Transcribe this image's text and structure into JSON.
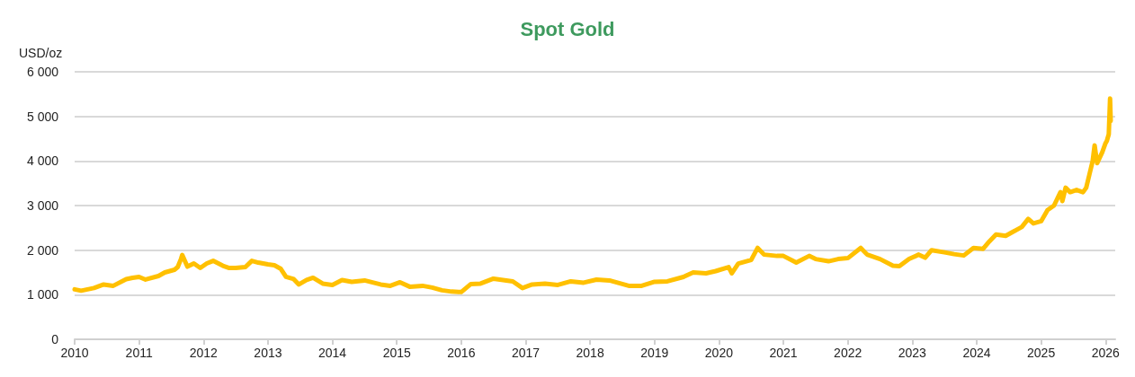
{
  "chart_data": {
    "type": "line",
    "title": "Spot Gold",
    "ylabel": "USD/oz",
    "grid": "y",
    "marker": "none",
    "line_style": "solid",
    "xlim": [
      2010,
      2026.15
    ],
    "xticks": [
      2010,
      2011,
      2012,
      2013,
      2014,
      2015,
      2016,
      2017,
      2018,
      2019,
      2020,
      2021,
      2022,
      2023,
      2024,
      2025,
      2026
    ],
    "ylim": [
      0,
      6000
    ],
    "yticks": [
      0,
      {
        "value": 1000,
        "label": "1 000"
      },
      {
        "value": 2000,
        "label": "2 000"
      },
      {
        "value": 3000,
        "label": "3 000"
      },
      {
        "value": 4000,
        "label": "4 000"
      },
      {
        "value": 5000,
        "label": "5 000"
      },
      {
        "value": 6000,
        "label": "6 000"
      }
    ],
    "x": [
      2010.0,
      2010.1,
      2010.3,
      2010.45,
      2010.6,
      2010.8,
      2010.9,
      2011.0,
      2011.1,
      2011.3,
      2011.4,
      2011.55,
      2011.6,
      2011.65,
      2011.67,
      2011.75,
      2011.85,
      2011.95,
      2012.05,
      2012.15,
      2012.3,
      2012.4,
      2012.5,
      2012.65,
      2012.75,
      2012.85,
      2013.0,
      2013.1,
      2013.2,
      2013.28,
      2013.4,
      2013.48,
      2013.6,
      2013.7,
      2013.85,
      2014.0,
      2014.15,
      2014.3,
      2014.5,
      2014.75,
      2014.9,
      2015.05,
      2015.2,
      2015.4,
      2015.55,
      2015.7,
      2015.85,
      2016.0,
      2016.15,
      2016.3,
      2016.5,
      2016.65,
      2016.8,
      2016.95,
      2017.1,
      2017.3,
      2017.5,
      2017.7,
      2017.9,
      2018.1,
      2018.3,
      2018.6,
      2018.8,
      2019.0,
      2019.2,
      2019.45,
      2019.6,
      2019.8,
      2019.95,
      2020.15,
      2020.2,
      2020.3,
      2020.5,
      2020.6,
      2020.7,
      2020.9,
      2021.0,
      2021.2,
      2021.4,
      2021.5,
      2021.7,
      2021.85,
      2022.0,
      2022.2,
      2022.3,
      2022.5,
      2022.7,
      2022.8,
      2022.95,
      2023.1,
      2023.2,
      2023.3,
      2023.5,
      2023.65,
      2023.8,
      2023.95,
      2024.1,
      2024.2,
      2024.3,
      2024.45,
      2024.55,
      2024.7,
      2024.8,
      2024.88,
      2025.0,
      2025.1,
      2025.2,
      2025.3,
      2025.33,
      2025.38,
      2025.45,
      2025.55,
      2025.65,
      2025.7,
      2025.75,
      2025.8,
      2025.83,
      2025.87,
      2025.95,
      2026.0,
      2026.02,
      2026.05,
      2026.07,
      2026.08
    ],
    "series": [
      {
        "color": "#ffc000",
        "values": [
          1120,
          1090,
          1150,
          1230,
          1200,
          1350,
          1380,
          1400,
          1340,
          1420,
          1500,
          1560,
          1620,
          1800,
          1890,
          1630,
          1700,
          1600,
          1700,
          1760,
          1650,
          1600,
          1600,
          1620,
          1760,
          1720,
          1680,
          1660,
          1580,
          1400,
          1350,
          1230,
          1330,
          1380,
          1250,
          1220,
          1330,
          1290,
          1320,
          1230,
          1200,
          1280,
          1180,
          1200,
          1160,
          1100,
          1070,
          1060,
          1240,
          1250,
          1360,
          1330,
          1300,
          1150,
          1230,
          1250,
          1220,
          1300,
          1270,
          1340,
          1320,
          1200,
          1200,
          1290,
          1300,
          1400,
          1500,
          1480,
          1530,
          1620,
          1480,
          1700,
          1780,
          2050,
          1900,
          1870,
          1870,
          1720,
          1870,
          1800,
          1750,
          1800,
          1820,
          2050,
          1900,
          1800,
          1650,
          1640,
          1800,
          1900,
          1830,
          2000,
          1950,
          1910,
          1880,
          2050,
          2030,
          2200,
          2350,
          2320,
          2400,
          2520,
          2700,
          2600,
          2650,
          2900,
          3000,
          3300,
          3100,
          3400,
          3300,
          3350,
          3300,
          3400,
          3700,
          4000,
          4350,
          3950,
          4200,
          4400,
          4450,
          4600,
          5400,
          4900
        ]
      }
    ]
  }
}
